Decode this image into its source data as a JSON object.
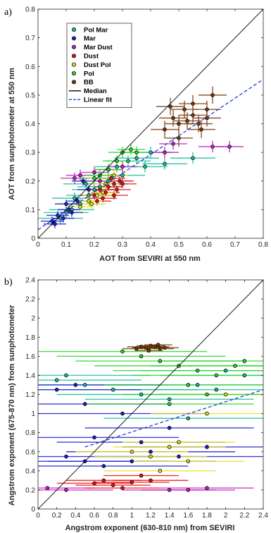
{
  "chart_data": [
    {
      "type": "scatter",
      "panel_label": "a)",
      "xlabel": "AOT from SEVIRI at 550 nm",
      "ylabel": "AOT from sunphotometer at 550 nm",
      "xlim": [
        0,
        0.8
      ],
      "ylim": [
        0,
        0.8
      ],
      "xticks": [
        "0",
        "0.1",
        "0.2",
        "0.3",
        "0.4",
        "0.5",
        "0.6",
        "0.7",
        "0.8"
      ],
      "yticks": [
        "0",
        "0.1",
        "0.2",
        "0.3",
        "0.4",
        "0.5",
        "0.6",
        "0.7",
        "0.8"
      ],
      "grid": false,
      "legend_position": "top-left",
      "legend": [
        {
          "name": "Pol Mar",
          "marker": "#1abc9c"
        },
        {
          "name": "Mar",
          "marker": "#1f1fd6"
        },
        {
          "name": "Mar Dust",
          "marker": "#c21ec2"
        },
        {
          "name": "Dust",
          "marker": "#e81010"
        },
        {
          "name": "Dust Pol",
          "marker": "#e6e01a"
        },
        {
          "name": "Pol",
          "marker": "#2bd62b"
        },
        {
          "name": "BB",
          "marker": "#7a3b0c"
        },
        {
          "name": "Median",
          "line": "#000000"
        },
        {
          "name": "Linear fit",
          "line": "#1f3fd6",
          "dashed": true
        }
      ],
      "reference_line": {
        "x": [
          0,
          0.8
        ],
        "y": [
          0,
          0.8
        ]
      },
      "linear_fit": {
        "x": [
          0,
          0.8
        ],
        "y": [
          0.03,
          0.555
        ]
      },
      "series": [
        {
          "name": "Pol Mar",
          "color": "#1abc9c",
          "points": [
            [
              0.08,
              0.07
            ],
            [
              0.1,
              0.09
            ],
            [
              0.12,
              0.1
            ],
            [
              0.15,
              0.12
            ],
            [
              0.18,
              0.15
            ],
            [
              0.2,
              0.17
            ],
            [
              0.22,
              0.18
            ],
            [
              0.25,
              0.2
            ],
            [
              0.28,
              0.25
            ],
            [
              0.3,
              0.22
            ],
            [
              0.35,
              0.28
            ],
            [
              0.4,
              0.3
            ],
            [
              0.45,
              0.26
            ],
            [
              0.55,
              0.28
            ],
            [
              0.13,
              0.14
            ],
            [
              0.17,
              0.19
            ],
            [
              0.32,
              0.27
            ],
            [
              0.38,
              0.25
            ]
          ],
          "xerr": 0.08,
          "yerr": 0.02
        },
        {
          "name": "Mar",
          "color": "#1f1fd6",
          "points": [
            [
              0.05,
              0.06
            ],
            [
              0.07,
              0.08
            ],
            [
              0.09,
              0.07
            ],
            [
              0.12,
              0.09
            ],
            [
              0.14,
              0.13
            ],
            [
              0.16,
              0.2
            ],
            [
              0.1,
              0.12
            ],
            [
              0.18,
              0.17
            ],
            [
              0.06,
              0.05
            ],
            [
              0.11,
              0.1
            ]
          ],
          "xerr": 0.04,
          "yerr": 0.015
        },
        {
          "name": "Mar Dust",
          "color": "#c21ec2",
          "points": [
            [
              0.13,
              0.21
            ],
            [
              0.15,
              0.22
            ],
            [
              0.2,
              0.23
            ],
            [
              0.25,
              0.24
            ],
            [
              0.3,
              0.25
            ],
            [
              0.45,
              0.3
            ],
            [
              0.48,
              0.33
            ],
            [
              0.62,
              0.32
            ],
            [
              0.68,
              0.32
            ],
            [
              0.22,
              0.2
            ]
          ],
          "xerr": 0.05,
          "yerr": 0.02
        },
        {
          "name": "Dust",
          "color": "#e81010",
          "points": [
            [
              0.2,
              0.15
            ],
            [
              0.22,
              0.17
            ],
            [
              0.25,
              0.18
            ],
            [
              0.27,
              0.19
            ],
            [
              0.24,
              0.16
            ],
            [
              0.29,
              0.2
            ],
            [
              0.26,
              0.21
            ],
            [
              0.23,
              0.14
            ],
            [
              0.28,
              0.17
            ],
            [
              0.3,
              0.19
            ],
            [
              0.21,
              0.13
            ],
            [
              0.27,
              0.15
            ]
          ],
          "xerr": 0.05,
          "yerr": 0.015
        },
        {
          "name": "Dust Pol",
          "color": "#e6e01a",
          "points": [
            [
              0.15,
              0.11
            ],
            [
              0.18,
              0.13
            ],
            [
              0.21,
              0.15
            ],
            [
              0.24,
              0.19
            ],
            [
              0.27,
              0.22
            ],
            [
              0.19,
              0.12
            ],
            [
              0.23,
              0.16
            ]
          ],
          "xerr": 0.05,
          "yerr": 0.02
        },
        {
          "name": "Pol",
          "color": "#2bd62b",
          "points": [
            [
              0.2,
              0.21
            ],
            [
              0.25,
              0.24
            ],
            [
              0.3,
              0.3
            ],
            [
              0.35,
              0.3
            ],
            [
              0.28,
              0.27
            ],
            [
              0.33,
              0.31
            ],
            [
              0.22,
              0.22
            ]
          ],
          "xerr": 0.05,
          "yerr": 0.02
        },
        {
          "name": "BB",
          "color": "#7a3b0c",
          "points": [
            [
              0.45,
              0.38
            ],
            [
              0.48,
              0.42
            ],
            [
              0.5,
              0.4
            ],
            [
              0.52,
              0.45
            ],
            [
              0.55,
              0.43
            ],
            [
              0.57,
              0.4
            ],
            [
              0.6,
              0.45
            ],
            [
              0.55,
              0.47
            ],
            [
              0.5,
              0.35
            ],
            [
              0.62,
              0.5
            ],
            [
              0.58,
              0.38
            ],
            [
              0.53,
              0.41
            ],
            [
              0.47,
              0.46
            ],
            [
              0.6,
              0.42
            ]
          ],
          "xerr": 0.05,
          "yerr": 0.03
        }
      ]
    },
    {
      "type": "scatter",
      "panel_label": "b)",
      "xlabel": "Angstrom exponent (630-810 nm) from SEVIRI",
      "ylabel": "Angstrom exponent (675-870 nm) from sunphotometer",
      "xlim": [
        0,
        2.4
      ],
      "ylim": [
        0,
        2.4
      ],
      "xticks": [
        "0",
        "0.2",
        "0.4",
        "0.6",
        "0.8",
        "1",
        "1.2",
        "1.4",
        "1.6",
        "1.8",
        "2",
        "2.2",
        "2.4"
      ],
      "yticks": [
        "0",
        "0.2",
        "0.4",
        "0.6",
        "0.8",
        "1",
        "1.2",
        "1.4",
        "1.6",
        "1.8",
        "2",
        "2.2",
        "2.4"
      ],
      "grid": false,
      "reference_line": {
        "x": [
          0,
          2.4
        ],
        "y": [
          0,
          2.4
        ]
      },
      "linear_fit": {
        "x": [
          0.5,
          2.4
        ],
        "y": [
          0.65,
          1.25
        ]
      },
      "series": [
        {
          "name": "Pol Mar",
          "color": "#1abc9c",
          "points": [
            [
              0.2,
              1.35
            ],
            [
              0.5,
              1.3
            ],
            [
              0.8,
              1.25
            ],
            [
              1.1,
              1.2
            ],
            [
              1.4,
              1.15
            ],
            [
              1.7,
              1.3
            ],
            [
              2.0,
              1.45
            ],
            [
              0.3,
              1.4
            ],
            [
              1.6,
              0.95
            ],
            [
              1.9,
              1.25
            ],
            [
              2.2,
              1.4
            ]
          ],
          "xerr": 0.9,
          "yerr": 0.02
        },
        {
          "name": "Mar",
          "color": "#1f1fd6",
          "points": [
            [
              0.3,
              0.55
            ],
            [
              0.5,
              0.5
            ],
            [
              0.7,
              0.45
            ],
            [
              1.0,
              0.5
            ],
            [
              1.2,
              0.6
            ],
            [
              1.5,
              0.55
            ],
            [
              1.8,
              0.65
            ],
            [
              0.4,
              1.3
            ],
            [
              0.6,
              0.75
            ],
            [
              1.1,
              0.7
            ],
            [
              1.4,
              0.85
            ],
            [
              0.9,
              1.0
            ],
            [
              0.5,
              1.1
            ],
            [
              0.2,
              1.25
            ]
          ],
          "xerr": 0.9,
          "yerr": 0.02
        },
        {
          "name": "Mar Dust",
          "color": "#c21ec2",
          "points": [
            [
              0.1,
              0.22
            ],
            [
              0.3,
              0.2
            ],
            [
              1.4,
              0.2
            ],
            [
              1.6,
              0.2
            ],
            [
              1.8,
              0.22
            ]
          ],
          "xerr": 0.5,
          "yerr": 0.02
        },
        {
          "name": "Dust",
          "color": "#e81010",
          "points": [
            [
              0.6,
              0.27
            ],
            [
              0.8,
              0.25
            ],
            [
              1.0,
              0.28
            ],
            [
              1.2,
              0.3
            ],
            [
              0.9,
              0.22
            ],
            [
              1.1,
              0.35
            ],
            [
              0.7,
              0.3
            ]
          ],
          "xerr": 0.4,
          "yerr": 0.02
        },
        {
          "name": "Dust Pol",
          "color": "#e6e01a",
          "points": [
            [
              1.0,
              0.6
            ],
            [
              1.2,
              0.55
            ],
            [
              1.4,
              0.65
            ],
            [
              1.6,
              0.5
            ],
            [
              1.3,
              0.4
            ],
            [
              1.5,
              0.7
            ],
            [
              1.8,
              1.0
            ],
            [
              2.0,
              1.2
            ]
          ],
          "xerr": 0.6,
          "yerr": 0.02
        },
        {
          "name": "Pol",
          "color": "#2bd62b",
          "points": [
            [
              0.9,
              1.65
            ],
            [
              1.1,
              1.6
            ],
            [
              1.3,
              1.55
            ],
            [
              1.5,
              1.5
            ],
            [
              1.7,
              1.45
            ],
            [
              1.9,
              1.4
            ],
            [
              2.1,
              1.5
            ],
            [
              1.6,
              1.3
            ],
            [
              1.8,
              1.2
            ],
            [
              1.4,
              1.1
            ],
            [
              2.2,
              1.55
            ]
          ],
          "xerr": 0.9,
          "yerr": 0.02
        },
        {
          "name": "BB",
          "color": "#7a3b0c",
          "points": [
            [
              1.05,
              1.68
            ],
            [
              1.1,
              1.7
            ],
            [
              1.15,
              1.69
            ],
            [
              1.2,
              1.71
            ],
            [
              1.25,
              1.7
            ],
            [
              1.3,
              1.68
            ],
            [
              1.35,
              1.69
            ],
            [
              1.18,
              1.66
            ],
            [
              1.28,
              1.72
            ]
          ],
          "xerr": 0.15,
          "yerr": 0.02
        }
      ]
    }
  ]
}
